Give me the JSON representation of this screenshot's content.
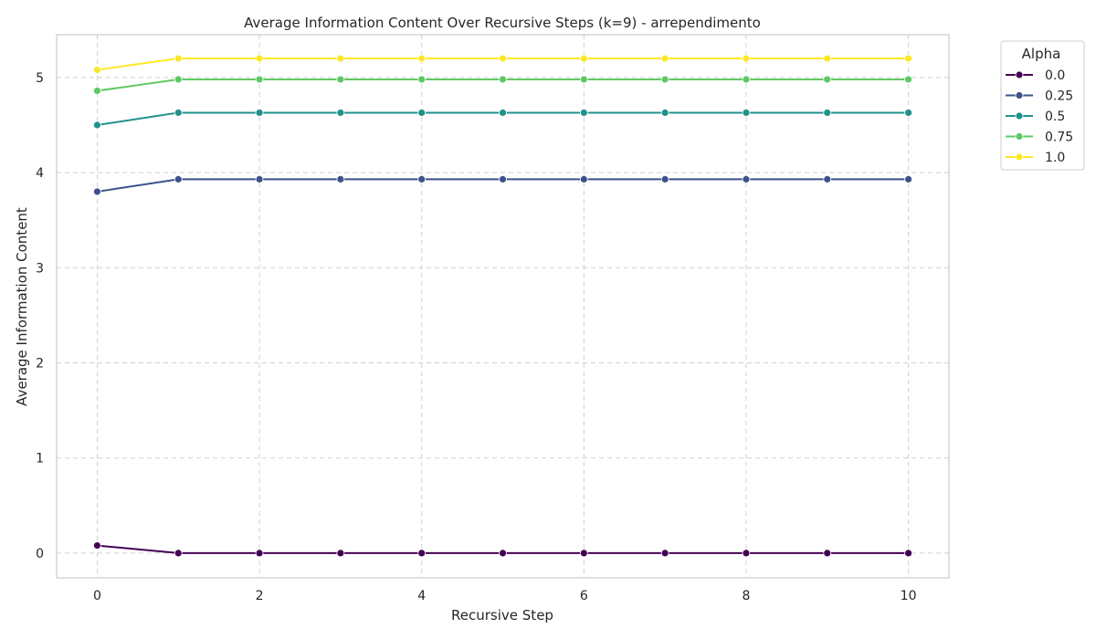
{
  "chart_data": {
    "type": "line",
    "title": "Average Information Content Over Recursive Steps (k=9) - arrependimento",
    "xlabel": "Recursive Step",
    "ylabel": "Average Information Content",
    "xlim": [
      -0.5,
      10.5
    ],
    "ylim": [
      -0.26,
      5.45
    ],
    "xticks": [
      0,
      2,
      4,
      6,
      8,
      10
    ],
    "yticks": [
      0,
      1,
      2,
      3,
      4,
      5
    ],
    "grid": true,
    "legend": {
      "title": "Alpha",
      "placement": "outside top-right"
    },
    "x": [
      0,
      1,
      2,
      3,
      4,
      5,
      6,
      7,
      8,
      9,
      10
    ],
    "series": [
      {
        "name": "0.0",
        "color": "#440154",
        "values": [
          0.08,
          0,
          0,
          0,
          0,
          0,
          0,
          0,
          0,
          0,
          0
        ]
      },
      {
        "name": "0.25",
        "color": "#3b528b",
        "values": [
          3.8,
          3.93,
          3.93,
          3.93,
          3.93,
          3.93,
          3.93,
          3.93,
          3.93,
          3.93,
          3.93
        ]
      },
      {
        "name": "0.5",
        "color": "#21918c",
        "values": [
          4.5,
          4.63,
          4.63,
          4.63,
          4.63,
          4.63,
          4.63,
          4.63,
          4.63,
          4.63,
          4.63
        ]
      },
      {
        "name": "0.75",
        "color": "#5ec962",
        "values": [
          4.86,
          4.98,
          4.98,
          4.98,
          4.98,
          4.98,
          4.98,
          4.98,
          4.98,
          4.98,
          4.98
        ]
      },
      {
        "name": "1.0",
        "color": "#fde725",
        "values": [
          5.08,
          5.2,
          5.2,
          5.2,
          5.2,
          5.2,
          5.2,
          5.2,
          5.2,
          5.2,
          5.2
        ]
      }
    ]
  }
}
